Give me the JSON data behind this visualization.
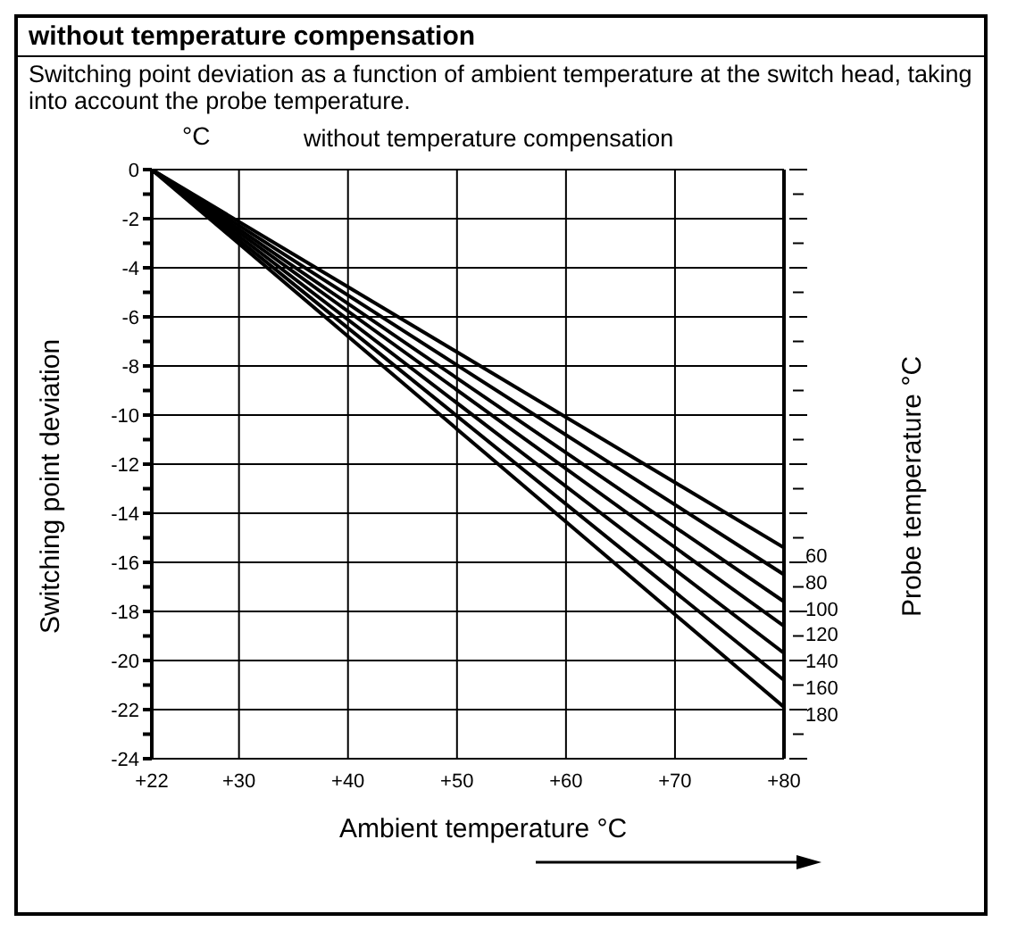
{
  "chart_data": {
    "type": "line",
    "title": "without temperature compensation",
    "subtitle": "Switching point deviation as a function of ambient temperature at the switch head, taking into account the probe temperature.",
    "annotations": [
      "°C",
      "without temperature compensation"
    ],
    "xlabel": "Ambient temperature °C",
    "ylabel": "Switching point deviation",
    "legend_title": "Probe temperature °C",
    "x": [
      22,
      80
    ],
    "series": [
      {
        "name": "60",
        "color": "#000000",
        "values": [
          0,
          -15.4
        ]
      },
      {
        "name": "80",
        "color": "#000000",
        "values": [
          0,
          -16.5
        ]
      },
      {
        "name": "100",
        "color": "#000000",
        "values": [
          0,
          -17.6
        ]
      },
      {
        "name": "120",
        "color": "#000000",
        "values": [
          0,
          -18.6
        ]
      },
      {
        "name": "140",
        "color": "#000000",
        "values": [
          0,
          -19.7
        ]
      },
      {
        "name": "160",
        "color": "#000000",
        "values": [
          0,
          -20.8
        ]
      },
      {
        "name": "180",
        "color": "#000000",
        "values": [
          0,
          -21.9
        ]
      }
    ],
    "xlim": [
      22,
      80
    ],
    "xticks": [
      {
        "value": 22,
        "label": "+22"
      },
      {
        "value": 30,
        "label": "+30"
      },
      {
        "value": 40,
        "label": "+40"
      },
      {
        "value": 50,
        "label": "+50"
      },
      {
        "value": 60,
        "label": "+60"
      },
      {
        "value": 70,
        "label": "+70"
      },
      {
        "value": 80,
        "label": "+80"
      }
    ],
    "ylim": [
      -24,
      0
    ],
    "yticks": [
      0,
      {
        "value": -1,
        "label": null
      },
      -2,
      {
        "value": -3,
        "label": null
      },
      -4,
      {
        "value": -5,
        "label": null
      },
      -6,
      {
        "value": -7,
        "label": null
      },
      -8,
      {
        "value": -9,
        "label": null
      },
      -10,
      {
        "value": -11,
        "label": null
      },
      -12,
      {
        "value": -13,
        "label": null
      },
      -14,
      {
        "value": -15,
        "label": null
      },
      -16,
      {
        "value": -17,
        "label": null
      },
      -18,
      {
        "value": -19,
        "label": null
      },
      -20,
      {
        "value": -21,
        "label": null
      },
      -22,
      {
        "value": -23,
        "label": null
      },
      -24
    ],
    "grid": true,
    "legend": "right",
    "marker": "none",
    "line_style": "solid"
  }
}
